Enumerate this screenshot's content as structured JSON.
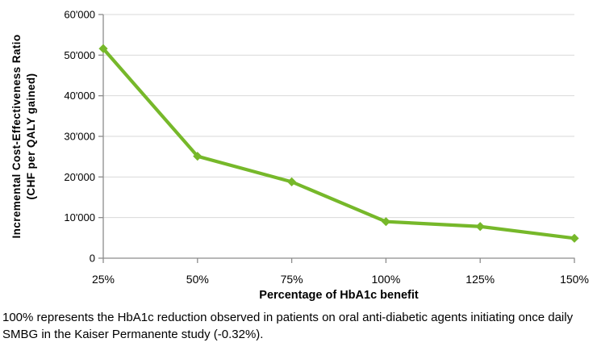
{
  "chart_data": {
    "type": "line",
    "title": "",
    "categories": [
      "25%",
      "50%",
      "75%",
      "100%",
      "125%",
      "150%"
    ],
    "series": [
      {
        "name": "Incremental Cost-Effectiveness Ratio",
        "values": [
          51600,
          25100,
          18800,
          9000,
          7800,
          4900
        ],
        "color": "#76B82A",
        "marker": "diamond"
      }
    ],
    "xlabel": "Percentage of HbA1c benefit",
    "ylabel_line1": "Incremental Cost-Effectiveness Ratio",
    "ylabel_line2": "(CHF per QALY gained)",
    "ylim": [
      0,
      60000
    ],
    "y_tick_values": [
      0,
      10000,
      20000,
      30000,
      40000,
      50000,
      60000
    ],
    "y_tick_labels": [
      "0",
      "10'000",
      "20'000",
      "30'000",
      "40'000",
      "50'000",
      "60'000"
    ],
    "grid": "horizontal",
    "legend_position": "none"
  },
  "caption": {
    "text": "100% represents the HbA1c reduction observed in patients on oral anti-diabetic agents initiating once daily SMBG in the Kaiser Permanente study (-0.32%)."
  },
  "colors": {
    "line": "#76B82A",
    "gridline": "#D9D9D9",
    "axis": "#8C8C8C",
    "text": "#000000",
    "background": "#FFFFFF"
  }
}
